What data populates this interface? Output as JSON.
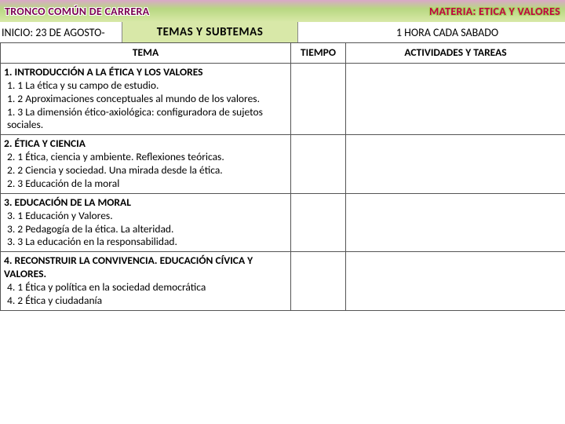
{
  "header": {
    "left": "TRONCO COMÚN DE CARRERA",
    "right": "MATERIA: ETICA Y VALORES"
  },
  "subheader": {
    "left": "INICIO: 23 DE AGOSTO-",
    "mid": "TEMAS Y SUBTEMAS",
    "right": "1 HORA CADA SABADO"
  },
  "table": {
    "col_tema": "TEMA",
    "col_tiempo": "TIEMPO",
    "col_actividades": "ACTIVIDADES Y TAREAS",
    "row1_title": "1.    INTRODUCCIÓN A LA ÉTICA Y LOS VALORES",
    "row1_l1": "1. 1 La ética y su campo de estudio.",
    "row1_l2": "1. 2 Aproximaciones conceptuales al mundo de los valores.",
    "row1_l3": "1. 3 La dimensión ético-axiológica: configuradora de sujetos sociales.",
    "row2_title": " 2. ÉTICA Y CIENCIA",
    "row2_l1": "2. 1 Ética, ciencia y ambiente. Reflexiones teóricas.",
    "row2_l2": "2. 2 Ciencia y sociedad. Una mirada desde la ética.",
    "row2_l3": "2. 3 Educación de la moral",
    "row3_title": "3. EDUCACIÓN DE LA MORAL",
    "row3_l1": "3. 1 Educación y Valores.",
    "row3_l2": "3. 2 Pedagogía de la ética. La alteridad.",
    "row3_l3": "3. 3 La educación en la responsabilidad.",
    "row4_title": "4. RECONSTRUIR LA CONVIVENCIA. EDUCACIÓN CÍVICA Y VALORES.",
    "row4_l1": "4. 1 Ética y política en la sociedad democrática",
    "row4_l2": "4. 2 Ética y ciudadanía"
  }
}
